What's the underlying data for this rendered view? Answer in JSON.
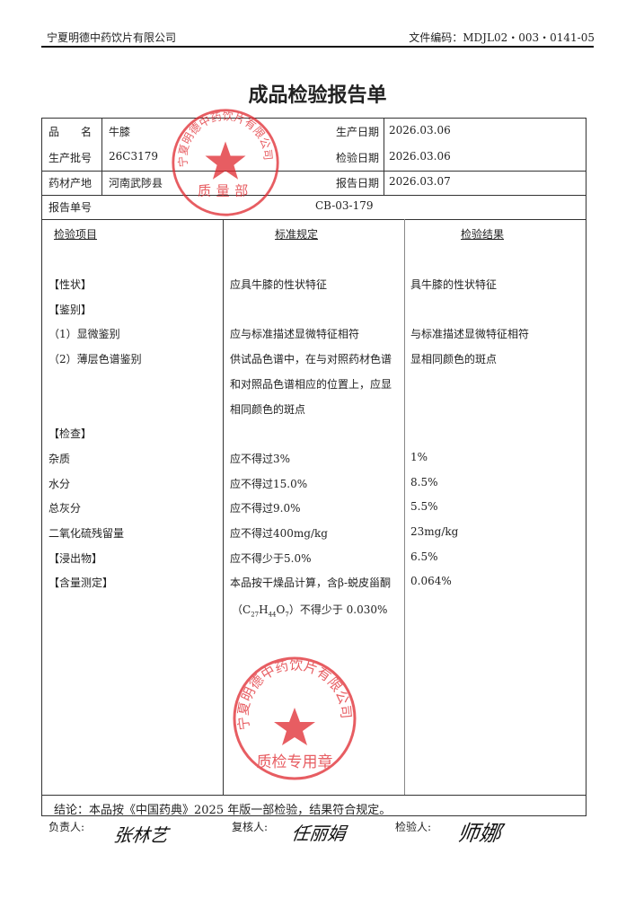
{
  "header": {
    "company": "宁夏明德中药饮片有限公司",
    "doc_code": "文件编码：MDJL02・003・0141-05"
  },
  "title": "成品检验报告单",
  "info": {
    "name_label": "品　　名",
    "name": "牛膝",
    "batch_label": "生产批号",
    "batch": "26C3179",
    "origin_label": "药材产地",
    "origin": "河南武陟县",
    "prod_date_label": "生产日期",
    "prod_date": "2026.03.06",
    "test_date_label": "检验日期",
    "test_date": "2026.03.06",
    "report_date_label": "报告日期",
    "report_date": "2026.03.07",
    "report_no_label": "报告单号",
    "report_no": "CB-03-179"
  },
  "columns": {
    "item": "检验项目",
    "standard": "标准规定",
    "result": "检验结果"
  },
  "rows": [
    {
      "item": "【性状】",
      "standard": "应具牛膝的性状特征",
      "result": "具牛膝的性状特征"
    },
    {
      "item": "【鉴别】",
      "standard": "",
      "result": ""
    },
    {
      "item": "（1）显微鉴别",
      "standard": "应与标准描述显微特征相符",
      "result": "与标准描述显微特征相符"
    },
    {
      "item": "（2）薄层色谱鉴别",
      "standard": "供试品色谱中，在与对照药材色谱",
      "result": "显相同颜色的斑点"
    },
    {
      "item": "",
      "standard": "和对照品色谱相应的位置上，应显",
      "result": ""
    },
    {
      "item": "",
      "standard": "相同颜色的斑点",
      "result": ""
    },
    {
      "item": "【检查】",
      "standard": "",
      "result": ""
    },
    {
      "item": "杂质",
      "standard": "应不得过3%",
      "result": "1%"
    },
    {
      "item": "水分",
      "standard": "应不得过15.0%",
      "result": "8.5%"
    },
    {
      "item": "总灰分",
      "standard": "应不得过9.0%",
      "result": "5.5%"
    },
    {
      "item": "二氧化硫残留量",
      "standard": "应不得过400mg/kg",
      "result": "23mg/kg"
    },
    {
      "item": "【浸出物】",
      "standard": "应不得少于5.0%",
      "result": "6.5%"
    },
    {
      "item": "【含量测定】",
      "standard": "本品按干燥品计算，含β-蜕皮甾酮",
      "result": "0.064%"
    }
  ],
  "formula": {
    "pre": "（C",
    "s1": "27",
    "h": "H",
    "s2": "44",
    "o": "O",
    "s3": "7",
    "post": "）不得少于 0.030%"
  },
  "conclusion": "结论：本品按《中国药典》2025 年版一部检验，结果符合规定。",
  "signatures": {
    "responsible_label": "负责人:",
    "responsible": "张林艺",
    "reviewer_label": "复核人:",
    "reviewer": "任丽娟",
    "inspector_label": "检验人:",
    "inspector": "师娜"
  },
  "stamps": {
    "top": {
      "ring": "宁夏明德中药饮片有限公司",
      "center": "质量部"
    },
    "bottom": {
      "ring": "宁夏明德中药饮片有限公司",
      "center": "质检专用章"
    },
    "color": "#e0282e"
  }
}
